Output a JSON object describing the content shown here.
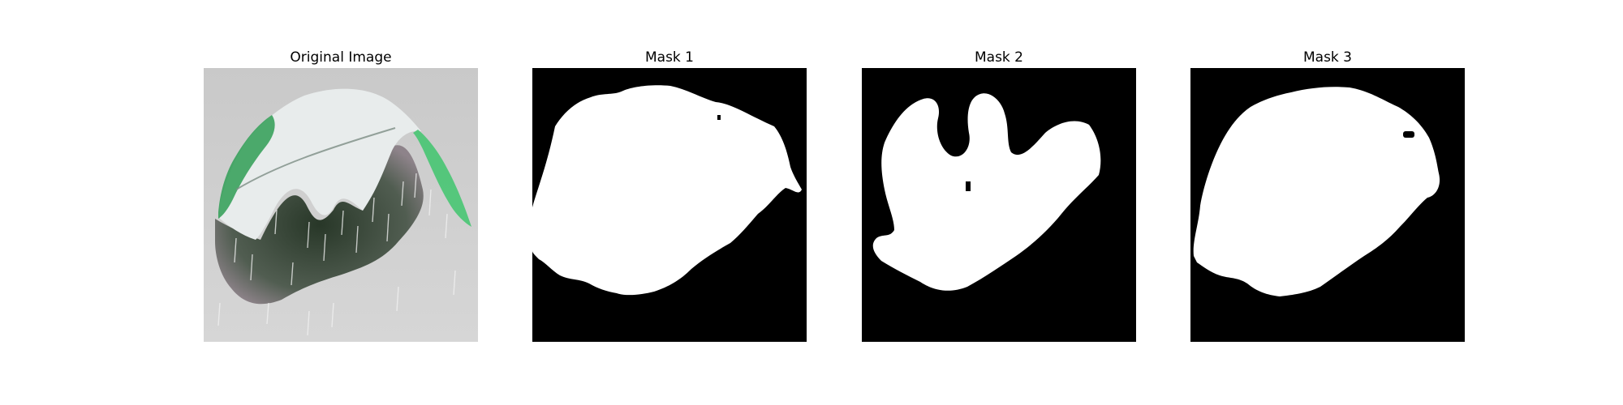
{
  "panels": [
    {
      "title": "Original Image",
      "kind": "photo"
    },
    {
      "title": "Mask 1",
      "kind": "mask"
    },
    {
      "title": "Mask 2",
      "kind": "mask"
    },
    {
      "title": "Mask 3",
      "kind": "mask"
    }
  ],
  "colors": {
    "mask_background": "#000000",
    "mask_foreground": "#ffffff",
    "photo_background": "#cfcfcf",
    "leaf_green": "#3fbf6a",
    "leaf_dark": "#263a28"
  }
}
